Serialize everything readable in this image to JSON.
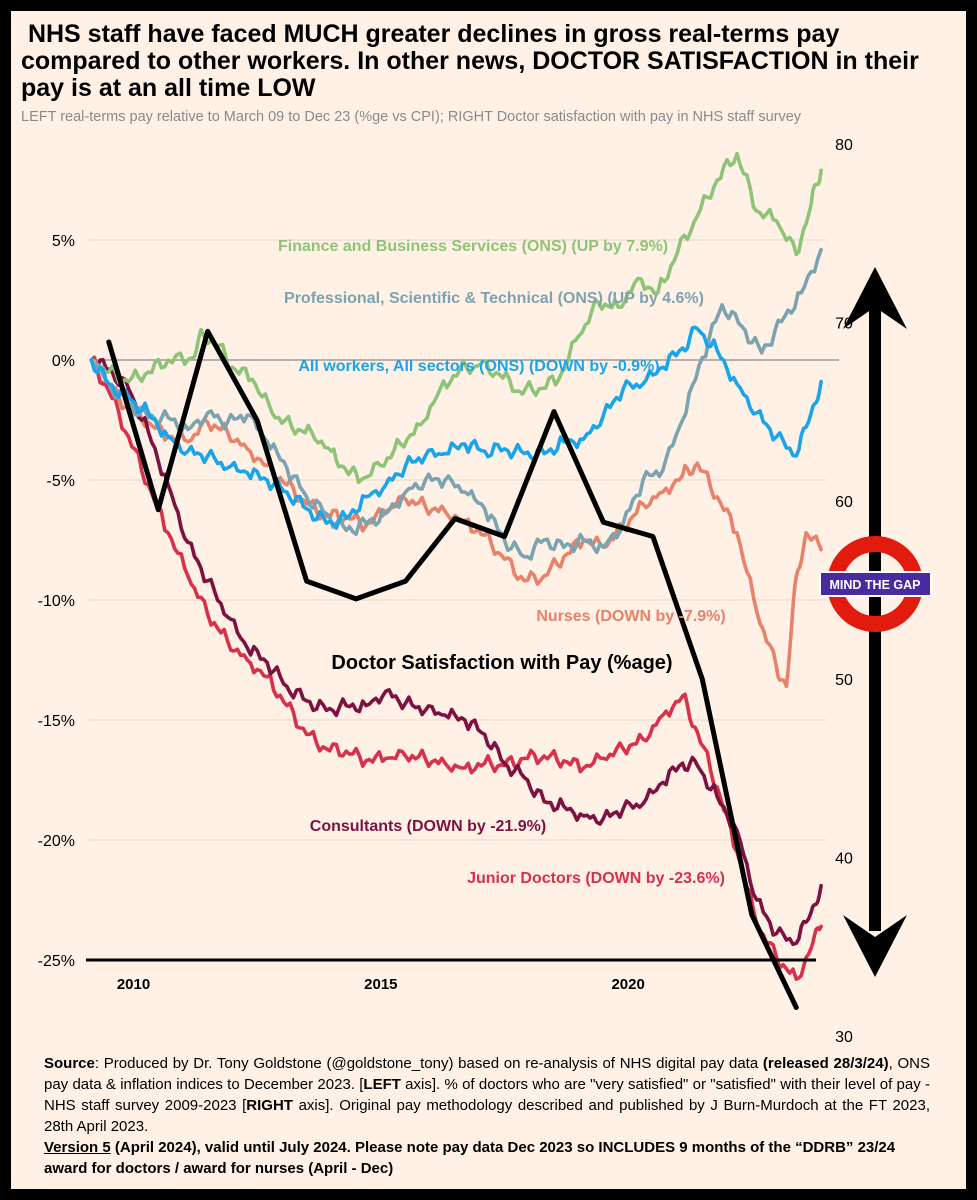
{
  "title": " NHS staff have faced MUCH greater declines in gross real-terms pay compared to other workers. In other news, DOCTOR SATISFACTION in their pay is at an all time LOW",
  "subtitle": "LEFT real-terms pay relative to March 09 to Dec 23 (%ge vs CPI); RIGHT Doctor satisfaction with pay in NHS staff survey",
  "badge": "MIND THE GAP",
  "colors": {
    "finance": "#8fc478",
    "professional": "#7ba3b0",
    "all_workers": "#1aa5ea",
    "nurses": "#e8826a",
    "consultants": "#7d1240",
    "junior": "#d8314b",
    "satisfaction": "#000000",
    "roundel_red": "#e11b0e",
    "roundel_bar": "#4a2aa0"
  },
  "chart_data": {
    "type": "line",
    "xlabel": "",
    "ylabel": "",
    "x_ticks": [
      "2010",
      "2015",
      "2020"
    ],
    "x_range": [
      2009.1,
      2024.0
    ],
    "left_axis": {
      "ticks": [
        "5%",
        "0%",
        "-5%",
        "-10%",
        "-15%",
        "-20%",
        "-25%"
      ],
      "range": [
        -25,
        5
      ]
    },
    "right_axis": {
      "ticks": [
        "80",
        "70",
        "60",
        "50",
        "40",
        "30"
      ],
      "range": [
        30,
        80
      ]
    },
    "series": [
      {
        "key": "finance",
        "name": "Finance and Business Services (ONS) (UP by 7.9%)",
        "axis": "left",
        "x": [
          2009.15,
          2009.5,
          2009.9,
          2010.3,
          2010.7,
          2011.2,
          2011.4,
          2011.7,
          2012.0,
          2012.4,
          2012.8,
          2013.2,
          2013.6,
          2014.0,
          2014.3,
          2014.6,
          2015.0,
          2015.4,
          2015.8,
          2016.2,
          2016.6,
          2017.0,
          2017.4,
          2017.8,
          2018.2,
          2018.6,
          2019.0,
          2019.4,
          2019.8,
          2020.2,
          2020.6,
          2021.0,
          2021.4,
          2021.8,
          2022.2,
          2022.6,
          2023.0,
          2023.4,
          2023.7,
          2023.9
        ],
        "values": [
          0.0,
          -0.5,
          -0.9,
          -0.5,
          0.0,
          0.1,
          1.1,
          0.6,
          -0.3,
          -0.8,
          -2.2,
          -2.8,
          -3.0,
          -3.8,
          -4.6,
          -5.0,
          -4.4,
          -3.5,
          -2.7,
          -1.2,
          -0.4,
          -0.2,
          -0.6,
          -1.3,
          -1.2,
          -0.8,
          1.0,
          2.4,
          2.2,
          3.4,
          2.8,
          4.5,
          6.0,
          7.5,
          8.6,
          6.2,
          5.8,
          4.4,
          6.5,
          7.9
        ]
      },
      {
        "key": "professional",
        "name": "Professional, Scientific & Technical (ONS) (UP by 4.6%)",
        "axis": "left",
        "x": [
          2009.15,
          2009.5,
          2009.9,
          2010.3,
          2010.7,
          2011.1,
          2011.5,
          2011.9,
          2012.3,
          2012.7,
          2013.1,
          2013.5,
          2013.9,
          2014.3,
          2014.7,
          2015.1,
          2015.5,
          2015.9,
          2016.3,
          2016.7,
          2017.1,
          2017.5,
          2017.9,
          2018.3,
          2018.7,
          2019.1,
          2019.5,
          2019.9,
          2020.3,
          2020.7,
          2021.1,
          2021.5,
          2021.9,
          2022.3,
          2022.7,
          2023.1,
          2023.5,
          2023.9
        ],
        "values": [
          0.0,
          -1.0,
          -1.8,
          -2.4,
          -2.4,
          -2.9,
          -2.2,
          -2.6,
          -2.3,
          -3.4,
          -4.5,
          -5.7,
          -6.4,
          -7.1,
          -6.8,
          -6.4,
          -5.5,
          -5.0,
          -5.0,
          -5.5,
          -6.2,
          -7.5,
          -8.2,
          -7.5,
          -7.8,
          -7.5,
          -7.8,
          -6.8,
          -5.0,
          -4.6,
          -2.5,
          0.1,
          2.3,
          1.4,
          0.3,
          1.6,
          2.8,
          4.6
        ]
      },
      {
        "key": "all_workers",
        "name": "All workers, All sectors (ONS) (DOWN by -0.9%)",
        "axis": "left",
        "x": [
          2009.15,
          2009.5,
          2009.9,
          2010.3,
          2010.7,
          2011.1,
          2011.5,
          2011.9,
          2012.3,
          2012.7,
          2013.1,
          2013.5,
          2013.9,
          2014.3,
          2014.7,
          2015.1,
          2015.5,
          2015.9,
          2016.3,
          2016.7,
          2017.1,
          2017.5,
          2017.9,
          2018.3,
          2018.7,
          2019.1,
          2019.5,
          2019.9,
          2020.3,
          2020.7,
          2021.1,
          2021.4,
          2021.8,
          2022.2,
          2022.6,
          2023.0,
          2023.4,
          2023.7,
          2023.9
        ],
        "values": [
          0.0,
          -1.0,
          -1.6,
          -2.2,
          -3.2,
          -3.8,
          -4.0,
          -4.5,
          -4.7,
          -5.0,
          -5.5,
          -6.2,
          -6.8,
          -6.6,
          -5.7,
          -5.2,
          -4.4,
          -4.0,
          -3.9,
          -3.5,
          -3.8,
          -3.7,
          -3.9,
          -3.9,
          -3.4,
          -3.3,
          -2.3,
          -1.2,
          -1.0,
          -0.3,
          0.5,
          1.3,
          0.4,
          -1.0,
          -2.2,
          -3.2,
          -4.0,
          -2.2,
          -0.9
        ]
      },
      {
        "key": "nurses",
        "name": "Nurses (DOWN by -7.9%)",
        "axis": "left",
        "x": [
          2009.15,
          2009.5,
          2009.9,
          2010.3,
          2010.7,
          2011.1,
          2011.5,
          2011.9,
          2012.3,
          2012.7,
          2013.1,
          2013.5,
          2013.9,
          2014.3,
          2014.7,
          2015.1,
          2015.5,
          2015.9,
          2016.3,
          2016.7,
          2017.1,
          2017.5,
          2017.9,
          2018.3,
          2018.7,
          2019.1,
          2019.5,
          2019.9,
          2020.3,
          2020.7,
          2021.1,
          2021.4,
          2021.8,
          2022.2,
          2022.6,
          2023.0,
          2023.2,
          2023.4,
          2023.6,
          2023.9
        ],
        "values": [
          0.0,
          -1.2,
          -2.0,
          -2.6,
          -3.2,
          -3.4,
          -2.6,
          -3.0,
          -3.7,
          -4.4,
          -5.2,
          -6.0,
          -6.5,
          -6.5,
          -6.9,
          -6.3,
          -5.8,
          -6.1,
          -6.3,
          -6.7,
          -7.3,
          -8.3,
          -9.2,
          -9.0,
          -8.2,
          -7.5,
          -7.8,
          -7.0,
          -6.0,
          -5.5,
          -4.8,
          -4.3,
          -5.7,
          -7.2,
          -10.5,
          -12.8,
          -13.6,
          -9.0,
          -7.2,
          -7.9
        ]
      },
      {
        "key": "consultants",
        "name": "Consultants (DOWN by -21.9%)",
        "axis": "left",
        "x": [
          2009.15,
          2009.5,
          2009.9,
          2010.3,
          2010.7,
          2011.1,
          2011.5,
          2011.9,
          2012.3,
          2012.7,
          2013.1,
          2013.5,
          2013.9,
          2014.3,
          2014.7,
          2015.1,
          2015.5,
          2015.9,
          2016.3,
          2016.7,
          2017.1,
          2017.5,
          2017.9,
          2018.3,
          2018.7,
          2019.1,
          2019.5,
          2019.9,
          2020.3,
          2020.7,
          2021.1,
          2021.4,
          2021.8,
          2022.2,
          2022.6,
          2023.0,
          2023.4,
          2023.7,
          2023.9
        ],
        "values": [
          0.0,
          -0.4,
          -1.2,
          -3.0,
          -5.2,
          -7.6,
          -9.2,
          -10.7,
          -12.0,
          -12.6,
          -13.6,
          -14.2,
          -14.6,
          -14.4,
          -14.4,
          -13.8,
          -14.3,
          -14.6,
          -14.8,
          -15.0,
          -15.6,
          -16.8,
          -17.4,
          -18.4,
          -18.6,
          -19.0,
          -19.1,
          -18.7,
          -18.5,
          -17.6,
          -16.8,
          -16.9,
          -18.2,
          -19.6,
          -22.5,
          -23.9,
          -24.3,
          -23.0,
          -21.9
        ]
      },
      {
        "key": "junior",
        "name": "Junior Doctors (DOWN by -23.6%)",
        "axis": "left",
        "x": [
          2009.15,
          2009.5,
          2009.9,
          2010.3,
          2010.7,
          2011.1,
          2011.5,
          2011.9,
          2012.3,
          2012.7,
          2013.1,
          2013.5,
          2013.9,
          2014.3,
          2014.7,
          2015.1,
          2015.5,
          2015.9,
          2016.3,
          2016.7,
          2017.1,
          2017.5,
          2017.9,
          2018.3,
          2018.7,
          2019.1,
          2019.5,
          2019.9,
          2020.3,
          2020.7,
          2021.1,
          2021.4,
          2021.8,
          2022.2,
          2022.6,
          2023.0,
          2023.4,
          2023.7,
          2023.9
        ],
        "values": [
          0.0,
          -1.3,
          -3.2,
          -5.2,
          -7.2,
          -9.0,
          -10.6,
          -11.7,
          -12.5,
          -13.2,
          -14.4,
          -15.6,
          -16.2,
          -16.3,
          -16.7,
          -16.6,
          -16.5,
          -16.6,
          -16.8,
          -17.0,
          -16.8,
          -16.9,
          -16.6,
          -16.5,
          -16.7,
          -17.0,
          -16.6,
          -16.2,
          -15.8,
          -14.8,
          -14.0,
          -15.5,
          -17.8,
          -20.5,
          -23.5,
          -24.9,
          -25.8,
          -24.5,
          -23.6
        ]
      },
      {
        "key": "satisfaction",
        "name": "Doctor Satisfaction with Pay (%age)",
        "axis": "right",
        "x": [
          2009.5,
          2010.5,
          2011.5,
          2012.5,
          2013.5,
          2014.5,
          2015.5,
          2016.5,
          2017.5,
          2018.5,
          2019.5,
          2020.5,
          2021.5,
          2022.5,
          2023.4
        ],
        "values": [
          68.9,
          59.5,
          69.5,
          64.5,
          55.5,
          54.5,
          55.5,
          59.0,
          58.0,
          65.0,
          58.8,
          58.0,
          50.0,
          36.8,
          31.6
        ]
      }
    ]
  },
  "series_labels": {
    "finance": "Finance and Business Services (ONS) (UP by 7.9%)",
    "professional": "Professional, Scientific & Technical (ONS) (UP by 4.6%)",
    "all_workers": "All workers, All sectors (ONS) (DOWN by -0.9%)",
    "nurses": "Nurses (DOWN by -7.9%)",
    "satisfaction": "Doctor Satisfaction with Pay (%age)",
    "consultants": "Consultants (DOWN by -21.9%)",
    "junior": "Junior Doctors (DOWN by -23.6%)"
  },
  "source": {
    "label": "Source",
    "text1": ": Produced by Dr. Tony Goldstone (@goldstone_tony) based on re-analysis of NHS digital pay data ",
    "released": "(released 28/3/24)",
    "text2": ", ONS pay data & inflation indices to December 2023. [",
    "left": "LEFT",
    "text3": " axis]. % of doctors who are \"very satisfied\" or \"satisfied\" with their level of pay - NHS staff survey 2009-2023  [",
    "right": "RIGHT",
    "text4": " axis]. Original pay methodology described and published by J Burn-Murdoch at the FT 2023, 28th April 2023."
  },
  "version": {
    "label": "Version 5",
    "text": "  (April 2024), valid until July 2024. Please note pay data Dec 2023 so INCLUDES 9 months of the “DDRB” 23/24 award  for doctors / award for nurses (April - Dec)"
  }
}
